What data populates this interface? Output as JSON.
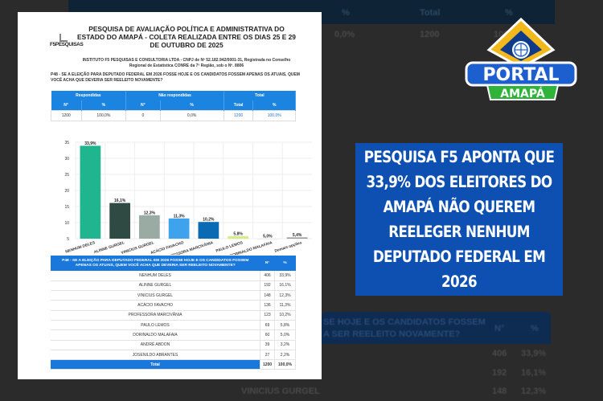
{
  "background": {
    "top_headers": [
      "%",
      "Total",
      "%"
    ],
    "top_values": [
      "0,0%",
      "1200",
      "100,0%"
    ],
    "bottom_header": [
      "SE HOJE E OS CANDIDATOS FOSSEM",
      "A SER REELEITO NOVAMENTE?"
    ],
    "bottom_cols": [
      "N°",
      "%"
    ],
    "bottom_rows": [
      [
        "406",
        "33,9%"
      ],
      [
        "192",
        "16,1%"
      ],
      [
        "148",
        "12,3%"
      ]
    ],
    "bottom_name": "VINICIUS GURGEL"
  },
  "document": {
    "title": "PESQUISA DE AVALIAÇÃO POLÍTICA E ADMINISTRATIVA DO ESTADO DO AMAPÁ - COLETA REALIZADA ENTRE OS DIAS 25 E 29 DE OUTUBRO DE 2025",
    "logo_text": "F5PESQUISAS",
    "institute": "INSTITUTO F5 PESQUISAS E CONSULTORIA LTDA - CNPJ de Nº 52.182.942/0001-31, Registrada no Conselho Regional de Estatística CONRE da 7ª Região, sob o Nº. 8806",
    "question": "P48 - SE A ELEIÇÃO PARA DEPUTADO FEDERAL EM 2026 FOSSE HOJE E OS CANDIDATOS FOSSEM APENAS OS ATUAIS, QUEM VOCÊ ACHA QUE DEVERIA SER REELEITO NOVAMENTE?",
    "summary": {
      "groups": [
        "Respondidas",
        "Não respondidas",
        "Total"
      ],
      "cols": [
        "N°",
        "%",
        "N°",
        "%",
        "Total",
        "%"
      ],
      "values": [
        "1200",
        "100,0%",
        "0",
        "0,0%",
        "1200",
        "100,0%"
      ]
    },
    "table": {
      "header": "P48 - SE A ELEIÇÃO PARA DEPUTADO FEDERAL EM 2026 FOSSE HOJE E OS CANDIDATOS FOSSEM APENAS OS ATUAIS, QUEM VOCÊ ACHA QUE DEVERIA SER REELEITO NOVAMENTE?",
      "cols": [
        "N°",
        "%"
      ],
      "rows": [
        [
          "NENHUM DELES",
          "406",
          "33,9%"
        ],
        [
          "ALINNE GURGEL",
          "192",
          "16,1%"
        ],
        [
          "VINICIUS GURGEL",
          "148",
          "12,3%"
        ],
        [
          "ACÁCIO FAVACHO",
          "136",
          "11,3%"
        ],
        [
          "PROFESSORA MARCIVÂNIA",
          "123",
          "10,2%"
        ],
        [
          "PAULO LEMOS",
          "69",
          "5,8%"
        ],
        [
          "DORINALDO MALAFAIA",
          "60",
          "5,0%"
        ],
        [
          "ANDRÉ ABDON",
          "39",
          "3,2%"
        ],
        [
          "JOSENILDO ABRANTES",
          "27",
          "2,2%"
        ]
      ],
      "total": [
        "Total",
        "1200",
        "100,0%"
      ]
    }
  },
  "chart_data": {
    "type": "bar",
    "categories": [
      "NENHUM DELES",
      "ALINNE GURGEL",
      "VINICIUS GURGEL",
      "ACÁCIO FAVACHO",
      "PROFESSORA MARCIVÂNIA",
      "PAULO LEMOS",
      "DORINALDO MALAFAIA",
      "Demais opções"
    ],
    "values": [
      33.9,
      16.1,
      12.3,
      11.3,
      10.2,
      5.8,
      5.0,
      5.4
    ],
    "labels": [
      "33,9%",
      "16,1%",
      "12,3%",
      "11,3%",
      "10,2%",
      "5,8%",
      "5,0%",
      "5,4%"
    ],
    "colors": [
      "#1fb58f",
      "#2f4a42",
      "#9aaba4",
      "#3fa2ec",
      "#0b6ab4",
      "#d6ec8a",
      "#eeeeee",
      "#9a9a9a"
    ],
    "yticks": [
      "5",
      "10",
      "15",
      "20",
      "25",
      "30",
      "35"
    ],
    "ylim": [
      5,
      35
    ],
    "grid": true
  },
  "headline": "PESQUISA F5 APONTA QUE 33,9% DOS ELEITORES DO AMAPÁ NÃO QUEREM REELEGER NENHUM DEPUTADO FEDERAL EM 2026",
  "brand": {
    "name": "PORTAL",
    "sub": "AMAPÁ",
    "blue": "#1e5fd0",
    "green": "#2fb33a",
    "gold": "#f2b81c"
  }
}
